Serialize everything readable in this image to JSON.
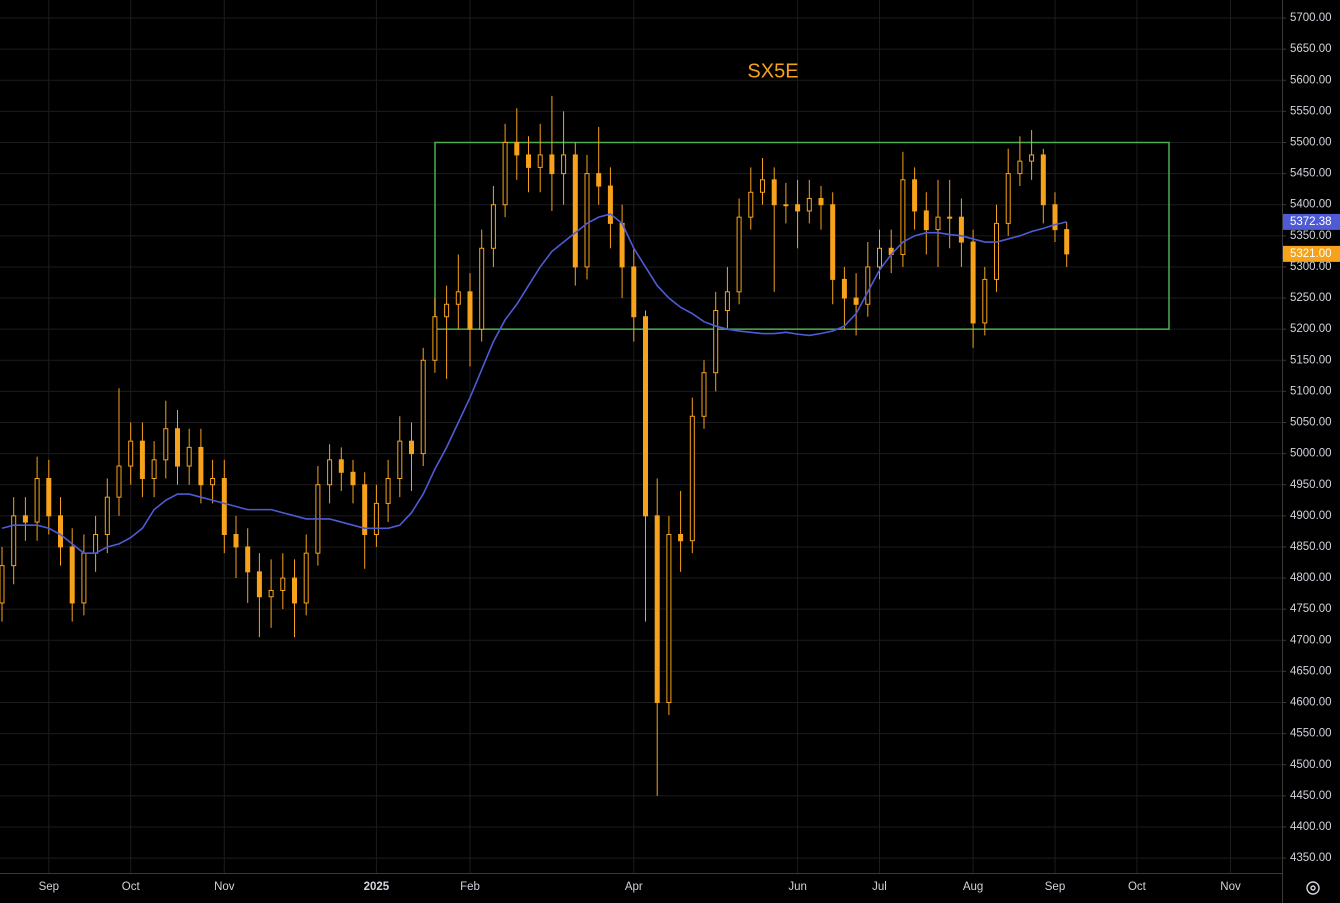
{
  "chart_data": {
    "type": "candlestick",
    "title": "SX5E",
    "color": "#f7a21b",
    "categories": [
      null,
      null,
      null,
      null,
      "Sep",
      null,
      null,
      null,
      null,
      null,
      null,
      "Oct",
      null,
      null,
      null,
      null,
      null,
      null,
      null,
      "Nov",
      null,
      null,
      null,
      null,
      null,
      null,
      null,
      null,
      null,
      null,
      null,
      null,
      "2025",
      null,
      null,
      null,
      null,
      null,
      null,
      null,
      "Feb",
      null,
      null,
      null,
      null,
      null,
      null,
      null,
      null,
      null,
      null,
      null,
      null,
      null,
      "Apr",
      null,
      null,
      null,
      null,
      null,
      null,
      null,
      null,
      null,
      null,
      null,
      null,
      null,
      "Jun",
      null,
      null,
      null,
      null,
      null,
      null,
      "Jul",
      null,
      null,
      null,
      null,
      null,
      null,
      null,
      "Aug",
      null,
      null,
      null,
      null,
      null,
      null,
      "Sep",
      null,
      null,
      null,
      null,
      null,
      null,
      "Oct",
      null,
      null,
      null,
      null,
      null,
      null,
      null,
      "Nov",
      null,
      null,
      null,
      null
    ],
    "open": [
      4760,
      4820,
      4900,
      4890,
      4960,
      4900,
      4850,
      4760,
      4840,
      4870,
      4930,
      4980,
      5020,
      4960,
      4990,
      5040,
      4980,
      5010,
      4950,
      4960,
      4870,
      4850,
      4810,
      4770,
      4780,
      4800,
      4760,
      4840,
      4950,
      4990,
      4970,
      4950,
      4870,
      4920,
      4960,
      5020,
      5000,
      5150,
      5220,
      5240,
      5260,
      5200,
      5330,
      5400,
      5500,
      5480,
      5460,
      5480,
      5450,
      5480,
      5300,
      5450,
      5430,
      5370,
      5300,
      5220,
      4900,
      4600,
      4870,
      4860,
      5060,
      5130,
      5230,
      5260,
      5380,
      5420,
      5440,
      5400,
      5400,
      5390,
      5410,
      5400,
      5280,
      5250,
      5240,
      5300,
      5330,
      5320,
      5440,
      5390,
      5360,
      5380,
      5380,
      5340,
      5210,
      5280,
      5370,
      5450,
      5470,
      5480,
      5400,
      5360,
      null,
      null,
      null,
      null,
      null,
      null,
      null,
      null,
      null,
      null,
      null,
      null,
      null,
      null,
      null,
      null,
      null,
      null
    ],
    "high": [
      4850,
      4930,
      4930,
      4995,
      4990,
      4930,
      4880,
      4870,
      4900,
      4960,
      5105,
      5050,
      5050,
      5020,
      5085,
      5070,
      5040,
      5040,
      4990,
      4990,
      4900,
      4880,
      4840,
      4830,
      4840,
      4830,
      4870,
      4980,
      5015,
      5010,
      4990,
      4970,
      4950,
      4990,
      5060,
      5050,
      5170,
      5250,
      5270,
      5320,
      5290,
      5360,
      5430,
      5530,
      5555,
      5510,
      5530,
      5575,
      5550,
      5500,
      5480,
      5525,
      5460,
      5400,
      5330,
      5230,
      4960,
      4900,
      4940,
      5090,
      5150,
      5260,
      5300,
      5410,
      5460,
      5475,
      5460,
      5435,
      5440,
      5440,
      5430,
      5420,
      5300,
      5290,
      5340,
      5360,
      5360,
      5485,
      5460,
      5420,
      5440,
      5440,
      5410,
      5360,
      5300,
      5400,
      5490,
      5510,
      5520,
      5490,
      5420,
      5372,
      null,
      null,
      null,
      null,
      null,
      null,
      null,
      null,
      null,
      null,
      null,
      null,
      null,
      null,
      null,
      null,
      null,
      null
    ],
    "low": [
      4730,
      4790,
      4860,
      4860,
      4870,
      4820,
      4730,
      4740,
      4810,
      4840,
      4900,
      4950,
      4930,
      4930,
      4960,
      4950,
      4950,
      4920,
      4920,
      4840,
      4800,
      4760,
      4705,
      4720,
      4750,
      4705,
      4740,
      4820,
      4920,
      4940,
      4920,
      4815,
      4850,
      4890,
      4930,
      4940,
      4980,
      5130,
      5120,
      5200,
      5140,
      5180,
      5300,
      5380,
      5440,
      5420,
      5420,
      5390,
      5400,
      5270,
      5280,
      5400,
      5330,
      5250,
      5180,
      4730,
      4450,
      4580,
      4810,
      4840,
      5040,
      5100,
      5200,
      5240,
      5360,
      5400,
      5260,
      5370,
      5330,
      5370,
      5360,
      5240,
      5200,
      5190,
      5220,
      5280,
      5290,
      5300,
      5360,
      5320,
      5300,
      5330,
      5300,
      5170,
      5190,
      5260,
      5350,
      5430,
      5440,
      5370,
      5340,
      5300,
      null,
      null,
      null,
      null,
      null,
      null,
      null,
      null,
      null,
      null,
      null,
      null,
      null,
      null,
      null,
      null,
      null,
      null
    ],
    "close": [
      4820,
      4900,
      4890,
      4960,
      4900,
      4850,
      4760,
      4840,
      4870,
      4930,
      4980,
      5020,
      4960,
      4990,
      5040,
      4980,
      5010,
      4950,
      4960,
      4870,
      4850,
      4810,
      4770,
      4780,
      4800,
      4760,
      4840,
      4950,
      4990,
      4970,
      4950,
      4870,
      4920,
      4960,
      5020,
      5000,
      5150,
      5220,
      5240,
      5260,
      5200,
      5330,
      5400,
      5500,
      5480,
      5460,
      5480,
      5450,
      5480,
      5300,
      5450,
      5430,
      5370,
      5300,
      5220,
      4900,
      4600,
      4870,
      4860,
      5060,
      5130,
      5230,
      5260,
      5380,
      5420,
      5440,
      5400,
      5400,
      5390,
      5410,
      5400,
      5280,
      5250,
      5240,
      5300,
      5330,
      5320,
      5440,
      5390,
      5360,
      5380,
      5380,
      5340,
      5210,
      5280,
      5370,
      5450,
      5470,
      5480,
      5400,
      5360,
      5321,
      null,
      null,
      null,
      null,
      null,
      null,
      null,
      null,
      null,
      null,
      null,
      null,
      null,
      null,
      null,
      null,
      null,
      null
    ],
    "ma": {
      "color": "#4f5bd5",
      "values": [
        4880,
        4885,
        4885,
        4885,
        4880,
        4870,
        4855,
        4840,
        4840,
        4850,
        4855,
        4865,
        4880,
        4910,
        4925,
        4935,
        4935,
        4930,
        4925,
        4920,
        4915,
        4910,
        4910,
        4910,
        4905,
        4900,
        4895,
        4895,
        4895,
        4890,
        4885,
        4880,
        4880,
        4880,
        4885,
        4905,
        4935,
        4975,
        5010,
        5050,
        5090,
        5135,
        5180,
        5215,
        5240,
        5270,
        5300,
        5325,
        5340,
        5355,
        5370,
        5380,
        5385,
        5370,
        5330,
        5300,
        5270,
        5250,
        5235,
        5225,
        5212,
        5205,
        5200,
        5197,
        5195,
        5193,
        5193,
        5195,
        5192,
        5190,
        5193,
        5197,
        5205,
        5225,
        5260,
        5295,
        5320,
        5340,
        5350,
        5355,
        5355,
        5352,
        5350,
        5345,
        5340,
        5340,
        5345,
        5350,
        5357,
        5362,
        5368,
        5372.38,
        null,
        null,
        null,
        null,
        null,
        null,
        null,
        null,
        null,
        null,
        null,
        null,
        null,
        null,
        null,
        null,
        null,
        null
      ]
    },
    "price_labels": [
      {
        "value": 5372.38,
        "label": "5372.38",
        "color": "#4f5bd5"
      },
      {
        "value": 5321,
        "label": "5321.00",
        "color": "#f7a21b"
      }
    ],
    "range_box": {
      "ylim": [
        5200,
        5500
      ],
      "color": "#4caf50"
    },
    "ylim": [
      4326,
      5729
    ],
    "yticks": [
      {
        "value": 4350,
        "label": "4350.00"
      },
      {
        "value": 4400,
        "label": "4400.00"
      },
      {
        "value": 4450,
        "label": "4450.00"
      },
      {
        "value": 4500,
        "label": "4500.00"
      },
      {
        "value": 4550,
        "label": "4550.00"
      },
      {
        "value": 4600,
        "label": "4600.00"
      },
      {
        "value": 4650,
        "label": "4650.00"
      },
      {
        "value": 4700,
        "label": "4700.00"
      },
      {
        "value": 4750,
        "label": "4750.00"
      },
      {
        "value": 4800,
        "label": "4800.00"
      },
      {
        "value": 4850,
        "label": "4850.00"
      },
      {
        "value": 4900,
        "label": "4900.00"
      },
      {
        "value": 4950,
        "label": "4950.00"
      },
      {
        "value": 5000,
        "label": "5000.00"
      },
      {
        "value": 5050,
        "label": "5050.00"
      },
      {
        "value": 5100,
        "label": "5100.00"
      },
      {
        "value": 5150,
        "label": "5150.00"
      },
      {
        "value": 5200,
        "label": "5200.00"
      },
      {
        "value": 5250,
        "label": "5250.00"
      },
      {
        "value": 5300,
        "label": "5300.00"
      },
      {
        "value": 5350,
        "label": "5350.00"
      },
      {
        "value": 5400,
        "label": "5400.00"
      },
      {
        "value": 5450,
        "label": "5450.00"
      },
      {
        "value": 5500,
        "label": "5500.00"
      },
      {
        "value": 5550,
        "label": "5550.00"
      },
      {
        "value": 5600,
        "label": "5600.00"
      },
      {
        "value": 5650,
        "label": "5650.00"
      },
      {
        "value": 5700,
        "label": "5700.00"
      }
    ],
    "grid": true
  }
}
